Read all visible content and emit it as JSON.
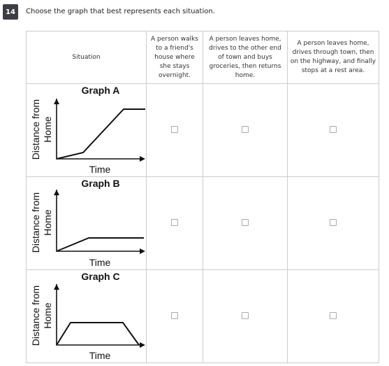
{
  "question": {
    "number": "14",
    "prompt": "Choose the graph that best represents each situation."
  },
  "table": {
    "headers": [
      "Situation",
      "A person walks to a friend's house where she stays overnight.",
      "A person leaves home, drives to the other end of town and buys groceries, then returns home.",
      "A person leaves home, drives through town, then on the highway, and finally stops at a rest area."
    ],
    "rows": [
      {
        "title": "Graph A",
        "y_label": "Distance from Home",
        "x_label": "Time"
      },
      {
        "title": "Graph B",
        "y_label": "Distance from Home",
        "x_label": "Time"
      },
      {
        "title": "Graph C",
        "y_label": "Distance from Home",
        "x_label": "Time"
      }
    ]
  }
}
